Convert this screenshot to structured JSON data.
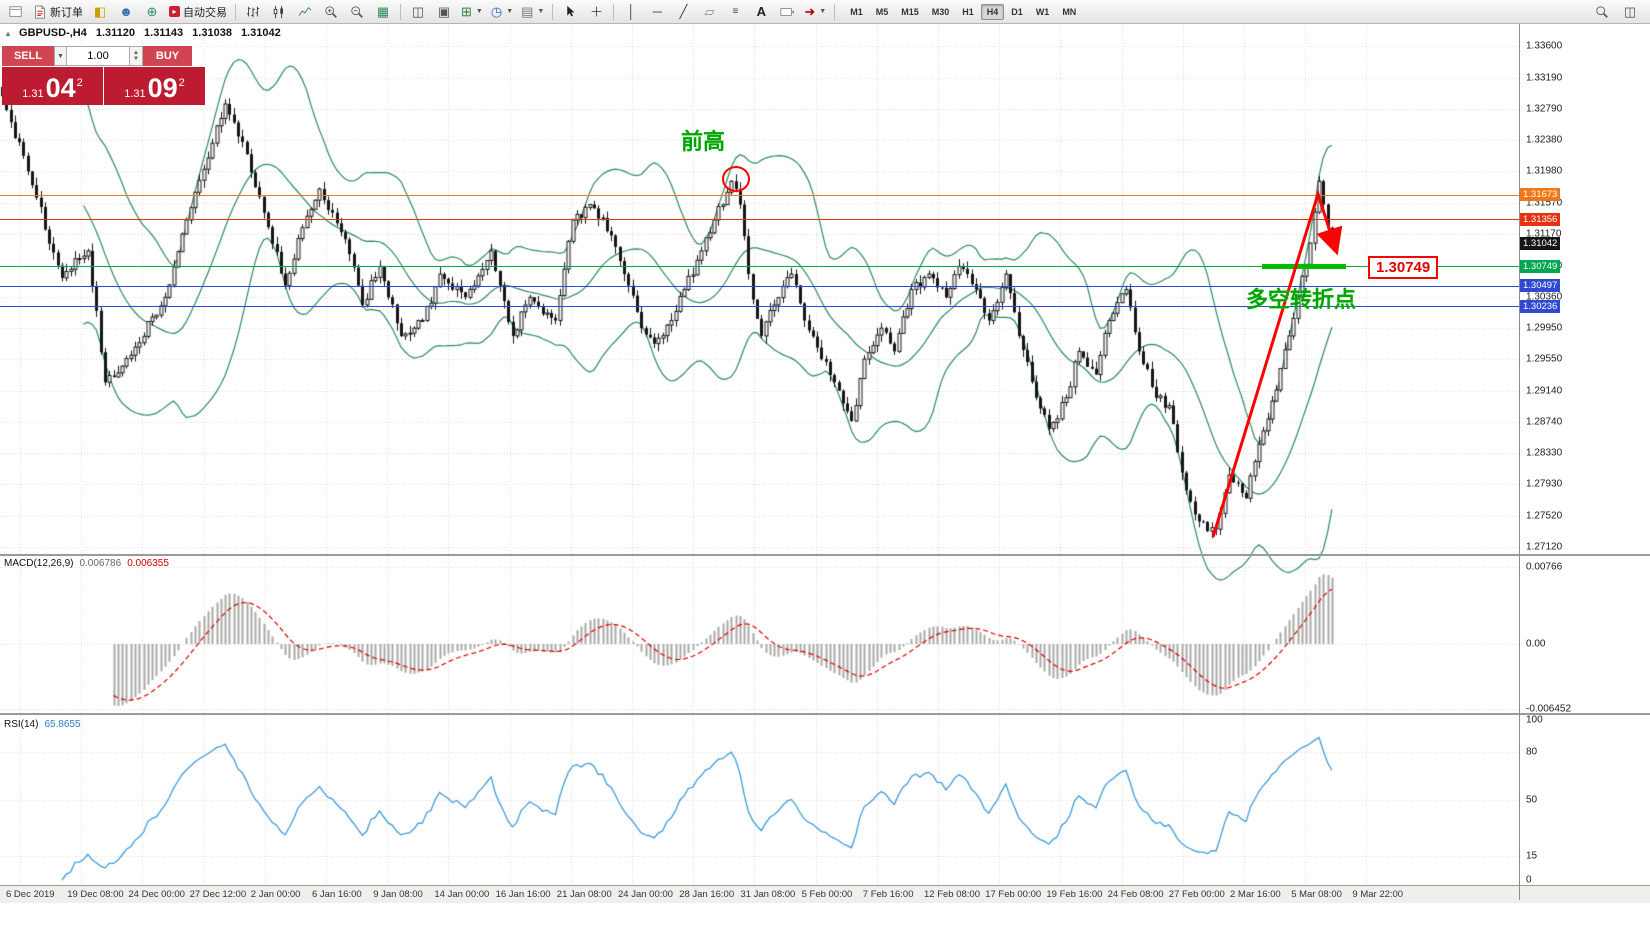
{
  "toolbar": {
    "new_order_label": "新订单",
    "autotrading_label": "自动交易",
    "timeframes": [
      "M1",
      "M5",
      "M15",
      "M30",
      "H1",
      "H4",
      "D1",
      "W1",
      "MN"
    ],
    "active_timeframe": "H4"
  },
  "symbol_header": {
    "symbol": "GBPUSD-,H4",
    "open": "1.31120",
    "high": "1.31143",
    "low": "1.31038",
    "close": "1.31042"
  },
  "trade_panel": {
    "sell_label": "SELL",
    "buy_label": "BUY",
    "volume": "1.00",
    "sell_price_prefix": "1.31",
    "sell_price_big": "04",
    "sell_price_sup": "2",
    "buy_price_prefix": "1.31",
    "buy_price_big": "09",
    "buy_price_sup": "2"
  },
  "price_axis": {
    "ticks": [
      "1.33600",
      "1.33190",
      "1.32790",
      "1.32380",
      "1.31980",
      "1.31570",
      "1.31170",
      "1.30760",
      "1.30360",
      "1.29950",
      "1.29550",
      "1.29140",
      "1.28740",
      "1.28330",
      "1.27930",
      "1.27520",
      "1.27120"
    ],
    "tags": [
      {
        "label": "1.31673",
        "color": "#f07818"
      },
      {
        "label": "1.31356",
        "color": "#e53210"
      },
      {
        "label": "1.31042",
        "color": "#161616"
      },
      {
        "label": "1.30749",
        "color": "#00a651"
      },
      {
        "label": "1.30497",
        "color": "#2f49d1"
      },
      {
        "label": "1.30236",
        "color": "#2f49d1"
      }
    ]
  },
  "levels": [
    {
      "price": 1.31673,
      "color": "#f07818"
    },
    {
      "price": 1.31356,
      "color": "#e53210"
    },
    {
      "price": 1.30749,
      "color": "#00a651"
    },
    {
      "price": 1.30497,
      "color": "#2f49d1"
    },
    {
      "price": 1.30236,
      "color": "#2f49d1"
    }
  ],
  "macd": {
    "name": "MACD(12,26,9)",
    "value_main": "0.006786",
    "value_signal": "0.006355",
    "axis": [
      "0.00766",
      "0.00",
      "-0.006452"
    ]
  },
  "rsi": {
    "name": "RSI(14)",
    "value": "65.8655",
    "axis": [
      "100",
      "80",
      "50",
      "15",
      "0"
    ]
  },
  "timeline": [
    "6 Dec 2019",
    "19 Dec 08:00",
    "24 Dec 00:00",
    "27 Dec 12:00",
    "2 Jan 00:00",
    "6 Jan 16:00",
    "9 Jan 08:00",
    "14 Jan 00:00",
    "16 Jan 16:00",
    "21 Jan 08:00",
    "24 Jan 00:00",
    "28 Jan 16:00",
    "31 Jan 08:00",
    "5 Feb 00:00",
    "7 Feb 16:00",
    "12 Feb 08:00",
    "17 Feb 00:00",
    "19 Feb 16:00",
    "24 Feb 08:00",
    "27 Feb 00:00",
    "2 Mar 16:00",
    "5 Mar 08:00",
    "9 Mar 22:00"
  ],
  "annotations": {
    "prev_high": "前高",
    "turning_point": "多空转折点",
    "price_label": "1.30749"
  },
  "chart_data": {
    "type": "candlestick",
    "symbol": "GBPUSD-",
    "timeframe": "H4",
    "current_bar_ohlc": [
      1.3112,
      1.31143,
      1.31038,
      1.31042
    ],
    "price_axis_range": [
      1.2712,
      1.336
    ],
    "indicators": [
      {
        "name": "Bollinger Bands",
        "period": 20,
        "deviation": 2,
        "color": "#2e8b57"
      },
      {
        "name": "MACD",
        "params": "12,26,9",
        "main": 0.006786,
        "signal": 0.006355,
        "axis_max": 0.00766,
        "axis_min": -0.006452
      },
      {
        "name": "RSI",
        "period": 14,
        "value": 65.8655
      }
    ],
    "candle_count": 311,
    "waypoints": [
      [
        0,
        1.3295
      ],
      [
        7,
        1.318
      ],
      [
        14,
        1.306
      ],
      [
        20,
        1.3095
      ],
      [
        24,
        1.2925
      ],
      [
        30,
        1.296
      ],
      [
        38,
        1.3035
      ],
      [
        43,
        1.3135
      ],
      [
        52,
        1.3285
      ],
      [
        57,
        1.322
      ],
      [
        60,
        1.3165
      ],
      [
        66,
        1.305
      ],
      [
        70,
        1.3125
      ],
      [
        74,
        1.3175
      ],
      [
        80,
        1.311
      ],
      [
        84,
        1.3025
      ],
      [
        88,
        1.3075
      ],
      [
        93,
        1.2985
      ],
      [
        98,
        1.3005
      ],
      [
        102,
        1.3065
      ],
      [
        108,
        1.3035
      ],
      [
        114,
        1.3095
      ],
      [
        119,
        1.2985
      ],
      [
        123,
        1.3035
      ],
      [
        129,
        1.3005
      ],
      [
        133,
        1.3135
      ],
      [
        137,
        1.3155
      ],
      [
        142,
        1.3115
      ],
      [
        145,
        1.3065
      ],
      [
        149,
        1.2995
      ],
      [
        152,
        1.2975
      ],
      [
        156,
        1.3005
      ],
      [
        159,
        1.3045
      ],
      [
        163,
        1.3095
      ],
      [
        166,
        1.3135
      ],
      [
        170,
        1.3185
      ],
      [
        172,
        1.3155
      ],
      [
        174,
        1.3065
      ],
      [
        177,
        1.2985
      ],
      [
        180,
        1.3025
      ],
      [
        184,
        1.3065
      ],
      [
        187,
        1.3005
      ],
      [
        191,
        1.2955
      ],
      [
        194,
        1.2925
      ],
      [
        198,
        1.2875
      ],
      [
        201,
        1.2955
      ],
      [
        205,
        1.2995
      ],
      [
        208,
        1.2965
      ],
      [
        212,
        1.3045
      ],
      [
        216,
        1.3065
      ],
      [
        220,
        1.3035
      ],
      [
        223,
        1.3075
      ],
      [
        227,
        1.3045
      ],
      [
        230,
        1.3005
      ],
      [
        234,
        1.3065
      ],
      [
        237,
        1.2985
      ],
      [
        241,
        1.2905
      ],
      [
        244,
        1.2865
      ],
      [
        248,
        1.2905
      ],
      [
        251,
        1.2965
      ],
      [
        255,
        1.2935
      ],
      [
        258,
        1.3005
      ],
      [
        262,
        1.3045
      ],
      [
        265,
        1.2965
      ],
      [
        269,
        1.2905
      ],
      [
        272,
        1.2895
      ],
      [
        276,
        1.2785
      ],
      [
        279,
        1.2745
      ],
      [
        283,
        1.2735
      ],
      [
        286,
        1.2805
      ],
      [
        290,
        1.2775
      ],
      [
        293,
        1.2845
      ],
      [
        297,
        1.2915
      ],
      [
        300,
        1.2985
      ],
      [
        302,
        1.3035
      ],
      [
        305,
        1.3105
      ],
      [
        307,
        1.3185
      ],
      [
        308,
        1.3155
      ],
      [
        309,
        1.3125
      ],
      [
        310,
        1.31042
      ]
    ]
  },
  "colors": {
    "bollinger": "#2e8b57",
    "macd_hist": "#a8a8a8",
    "macd_signal": "#e00000",
    "rsi_line": "#3d9bd5",
    "annotation_green": "#00a400",
    "arrow_red": "#ff0000",
    "panel_red": "#bc1b31"
  }
}
